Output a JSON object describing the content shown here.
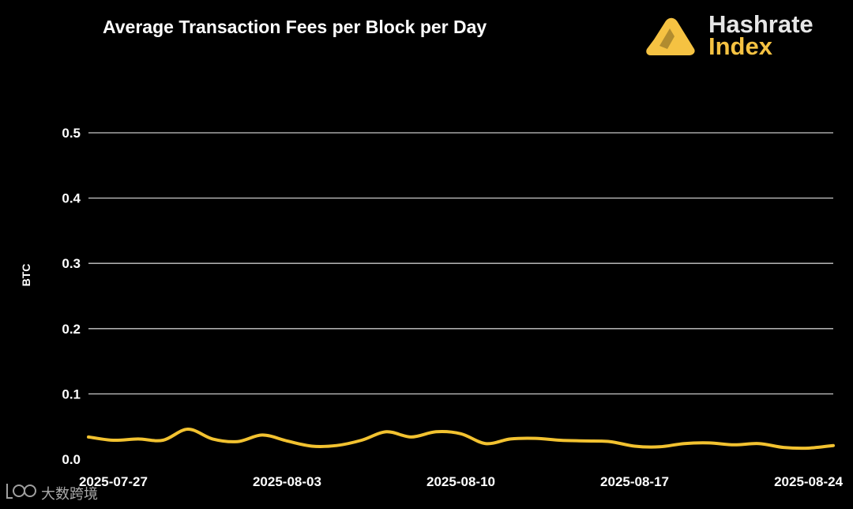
{
  "chart_data": {
    "type": "line",
    "title": "Average Transaction Fees per Block per Day",
    "xlabel": "",
    "ylabel": "BTC",
    "ylim": [
      0,
      0.5
    ],
    "yticks": [
      "0.0",
      "0.1",
      "0.2",
      "0.3",
      "0.4",
      "0.5"
    ],
    "xticks": [
      {
        "label": "2025-07-27",
        "index": 1
      },
      {
        "label": "2025-08-03",
        "index": 8
      },
      {
        "label": "2025-08-10",
        "index": 15
      },
      {
        "label": "2025-08-17",
        "index": 22
      },
      {
        "label": "2025-08-24",
        "index": 29
      }
    ],
    "grid": true,
    "series": [
      {
        "name": "Average Transaction Fees",
        "color": "#f2c230",
        "values": [
          0.034,
          0.029,
          0.031,
          0.029,
          0.046,
          0.031,
          0.027,
          0.037,
          0.028,
          0.02,
          0.021,
          0.029,
          0.042,
          0.034,
          0.042,
          0.039,
          0.024,
          0.031,
          0.032,
          0.029,
          0.028,
          0.027,
          0.02,
          0.019,
          0.024,
          0.025,
          0.022,
          0.024,
          0.018,
          0.017,
          0.021
        ]
      }
    ]
  },
  "brand": {
    "name_line1": "Hashrate",
    "name_line2": "Index",
    "accent_color": "#f5c242"
  },
  "watermark": {
    "text": "大数跨境",
    "icon": "logo-icon"
  }
}
